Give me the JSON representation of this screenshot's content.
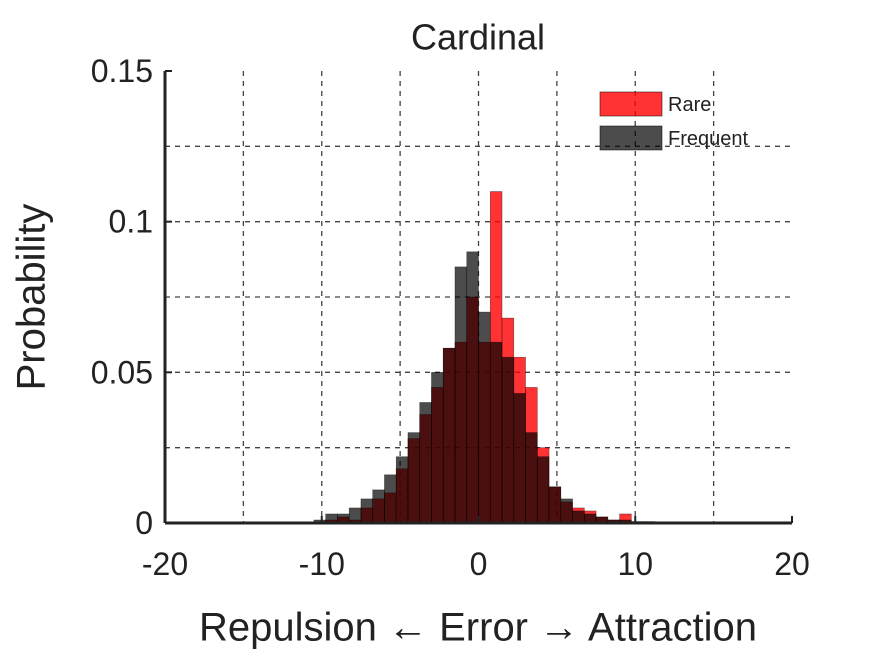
{
  "chart_data": {
    "type": "histogram",
    "title": "Cardinal",
    "x_label": "Repulsion ← Error → Attraction",
    "y_label": "Probability",
    "bins": [
      -10.5,
      -9.75,
      -9,
      -8.25,
      -7.5,
      -6.75,
      -6,
      -5.25,
      -4.5,
      -3.75,
      -3,
      -2.25,
      -1.5,
      -0.75,
      0,
      0.75,
      1.5,
      2.25,
      3,
      3.75,
      4.5,
      5.25,
      6,
      6.75,
      7.5,
      8.25,
      9,
      9.75,
      10.5,
      11.25
    ],
    "series": [
      {
        "name": "Rare",
        "color": "#ff0000",
        "opacity": 0.8,
        "values": [
          0,
          0.001,
          0.002,
          0.001,
          0.005,
          0.008,
          0.01,
          0.018,
          0.028,
          0.036,
          0.045,
          0.058,
          0.06,
          0.075,
          0.06,
          0.11,
          0.068,
          0.055,
          0.045,
          0.025,
          0.012,
          0.007,
          0.005,
          0.004,
          0.002,
          0.001,
          0.003,
          0,
          0
        ]
      },
      {
        "name": "Frequent",
        "color": "#000000",
        "opacity": 0.7,
        "values": [
          0.001,
          0.003,
          0.003,
          0.005,
          0.008,
          0.011,
          0.016,
          0.022,
          0.03,
          0.04,
          0.05,
          0.058,
          0.085,
          0.09,
          0.07,
          0.06,
          0.055,
          0.043,
          0.03,
          0.022,
          0.012,
          0.008,
          0.004,
          0.003,
          0.002,
          0.001,
          0.001,
          0.0005,
          0.0005
        ]
      }
    ],
    "xlim": [
      -20,
      20
    ],
    "xticks": [
      -20,
      -10,
      0,
      10,
      20
    ],
    "x_minor_grid": [
      -15,
      -5,
      5,
      15
    ],
    "ylim": [
      0,
      0.15
    ],
    "yticks": [
      0,
      0.05,
      0.1,
      0.15
    ],
    "y_minor_grid": [
      0.025,
      0.075,
      0.125
    ],
    "grid": true,
    "legend": "upper right"
  }
}
